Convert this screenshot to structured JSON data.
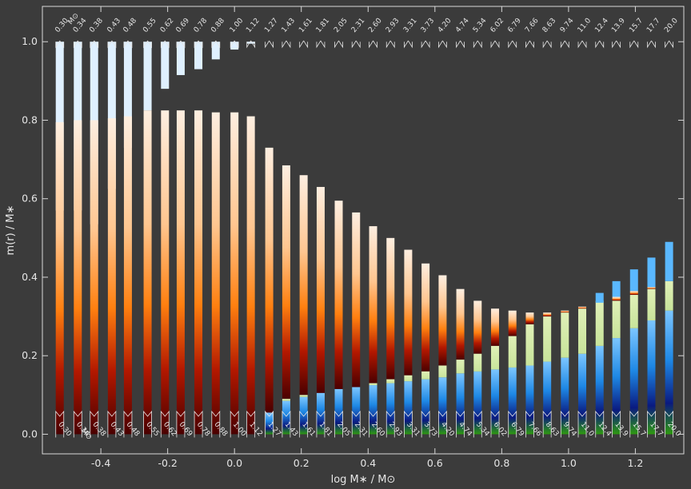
{
  "chart_data": {
    "type": "bar",
    "xlabel": "log M∗ / M⊙",
    "ylabel": "m(r) / M∗",
    "xlim": [
      -0.575,
      1.345
    ],
    "ylim": [
      -0.05,
      1.09
    ],
    "xticks": [
      -0.4,
      -0.2,
      0.0,
      0.2,
      0.4,
      0.6,
      0.8,
      1.0,
      1.2
    ],
    "xtick_labels": [
      "-0.4",
      "-0.2",
      "0.0",
      "0.2",
      "0.4",
      "0.6",
      "0.8",
      "1.0",
      "1.2"
    ],
    "yticks": [
      0.0,
      0.2,
      0.4,
      0.6,
      0.8,
      1.0
    ],
    "ytick_labels": [
      "0.0",
      "0.2",
      "0.4",
      "0.6",
      "0.8",
      "1.0"
    ],
    "mass_unit": "M⊙",
    "masses": [
      "0.30",
      "0.34",
      "0.38",
      "0.43",
      "0.48",
      "0.55",
      "0.62",
      "0.69",
      "0.78",
      "0.88",
      "1.00",
      "1.12",
      "1.27",
      "1.43",
      "1.61",
      "1.81",
      "2.05",
      "2.31",
      "2.60",
      "2.93",
      "3.31",
      "3.73",
      "4.20",
      "4.74",
      "5.34",
      "6.02",
      "6.79",
      "7.66",
      "8.63",
      "9.74",
      "11.0",
      "12.4",
      "13.9",
      "15.7",
      "17.7",
      "20.0"
    ],
    "log_mass": [
      -0.523,
      -0.469,
      -0.42,
      -0.367,
      -0.319,
      -0.26,
      -0.208,
      -0.161,
      -0.108,
      -0.056,
      0.0,
      0.049,
      0.104,
      0.155,
      0.207,
      0.258,
      0.312,
      0.364,
      0.415,
      0.467,
      0.52,
      0.572,
      0.623,
      0.676,
      0.728,
      0.78,
      0.832,
      0.884,
      0.936,
      0.989,
      1.041,
      1.093,
      1.143,
      1.196,
      1.248,
      1.301
    ],
    "convective_envelope_base": [
      0.57,
      0.57,
      0.535,
      0.625,
      0.73,
      0.825,
      0.88,
      0.915,
      0.93,
      0.955,
      0.98,
      0.995,
      1.0,
      1.0,
      1.0,
      1.0,
      1.0,
      1.0,
      1.0,
      1.0,
      1.0,
      1.0,
      1.0,
      1.0,
      1.0,
      1.0,
      1.0,
      1.0,
      1.0,
      1.0,
      1.0,
      1.0,
      1.0,
      1.0,
      1.0,
      1.0
    ],
    "envelope_top": [
      0.795,
      0.8,
      0.8,
      0.805,
      0.81,
      0.825,
      0.825,
      0.825,
      0.825,
      0.82,
      0.82,
      0.81,
      0.73,
      0.685,
      0.66,
      0.63,
      0.595,
      0.565,
      0.53,
      0.5,
      0.47,
      0.435,
      0.405,
      0.37,
      0.34,
      0.32,
      0.315,
      0.31,
      0.31,
      0.315,
      0.325,
      0.335,
      0.35,
      0.365,
      0.375,
      0.39
    ],
    "convective_core": [
      0.0,
      0.0,
      0.0,
      0.0,
      0.0,
      0.0,
      0.0,
      0.0,
      0.0,
      0.0,
      0.0,
      0.0,
      0.055,
      0.085,
      0.095,
      0.105,
      0.115,
      0.12,
      0.125,
      0.13,
      0.135,
      0.14,
      0.145,
      0.155,
      0.16,
      0.165,
      0.17,
      0.175,
      0.185,
      0.195,
      0.205,
      0.225,
      0.245,
      0.27,
      0.29,
      0.315
    ],
    "core_intershell_top": [
      0.0,
      0.0,
      0.0,
      0.0,
      0.0,
      0.0,
      0.0,
      0.0,
      0.0,
      0.0,
      0.0,
      0.0,
      0.055,
      0.09,
      0.1,
      0.105,
      0.115,
      0.12,
      0.13,
      0.14,
      0.15,
      0.16,
      0.175,
      0.19,
      0.205,
      0.225,
      0.25,
      0.28,
      0.3,
      0.31,
      0.32,
      0.34,
      0.34,
      0.355,
      0.37,
      0.39
    ],
    "outer_shell_top": [
      0.0,
      0.0,
      0.0,
      0.0,
      0.0,
      0.0,
      0.0,
      0.0,
      0.0,
      0.0,
      0.0,
      0.0,
      0.0,
      0.0,
      0.0,
      0.0,
      0.0,
      0.0,
      0.0,
      0.0,
      0.0,
      0.0,
      0.0,
      0.0,
      0.0,
      0.0,
      0.0,
      0.0,
      0.0,
      0.0,
      0.0,
      0.36,
      0.39,
      0.42,
      0.45,
      0.49
    ],
    "colors": {
      "background": "#3b3b3b",
      "frame": "#d8d8d8",
      "convective_envelope": "#dff0ff",
      "envelope_light": "#fdeee0",
      "envelope_orange": "#ff7a10",
      "envelope_dark": "#5a0000",
      "core_light": "#d9ecb4",
      "core_blue": "#1e88e5",
      "core_navy": "#0a1a80",
      "core_green": "#2e9a10",
      "shell_blue": "#5ab8ff"
    }
  }
}
